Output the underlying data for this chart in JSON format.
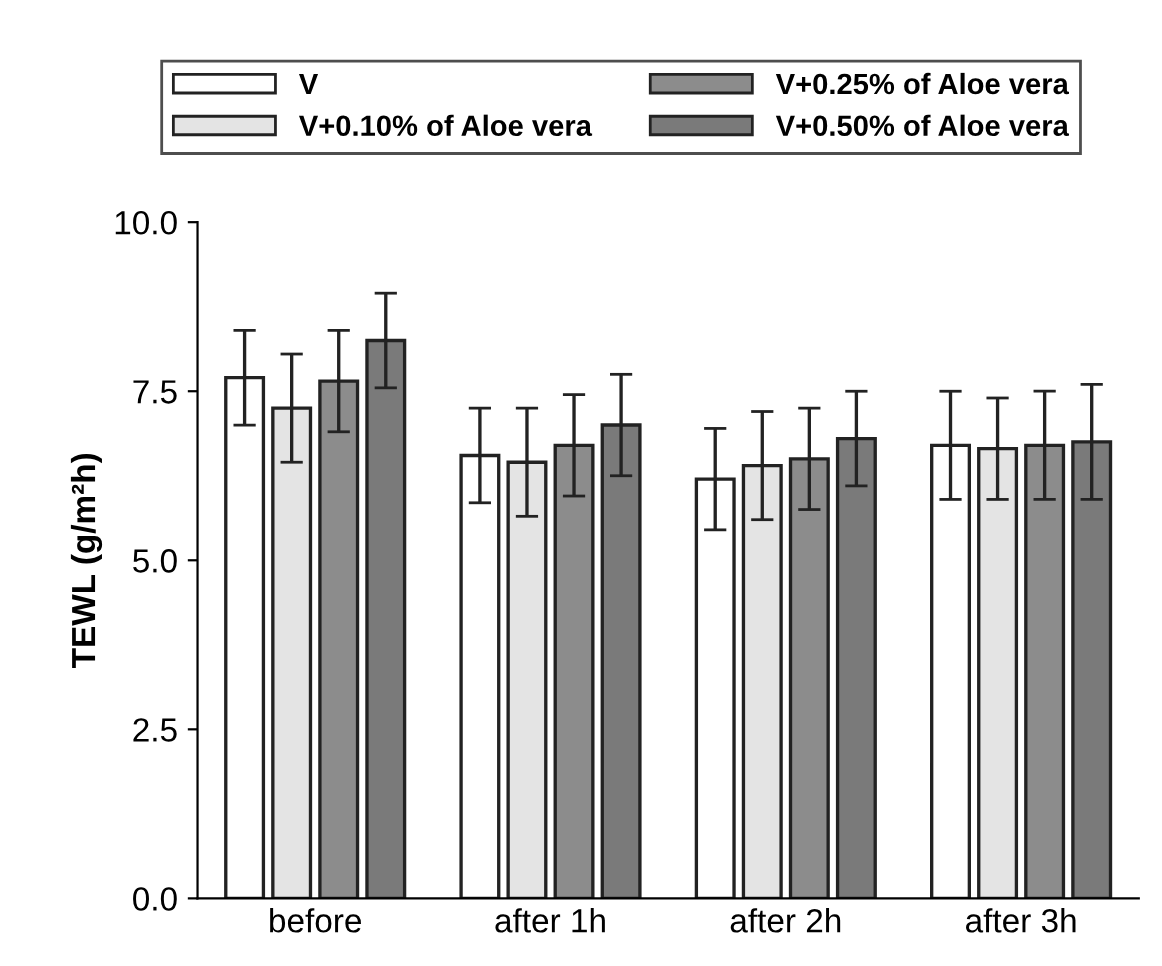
{
  "chart_data": {
    "type": "bar",
    "ylabel": "TEWL (g/m²h)",
    "categories": [
      "before",
      "after 1h",
      "after 2h",
      "after 3h"
    ],
    "series": [
      {
        "name": "V",
        "color": "#ffffff",
        "values": [
          7.7,
          6.55,
          6.2,
          6.7
        ],
        "errors": [
          0.7,
          0.7,
          0.75,
          0.8
        ]
      },
      {
        "name": "V+0.10% of Aloe vera",
        "color": "#e4e4e4",
        "values": [
          7.25,
          6.45,
          6.4,
          6.65
        ],
        "errors": [
          0.8,
          0.8,
          0.8,
          0.75
        ]
      },
      {
        "name": "V+0.25% of Aloe vera",
        "color": "#8c8c8c",
        "values": [
          7.65,
          6.7,
          6.5,
          6.7
        ],
        "errors": [
          0.75,
          0.75,
          0.75,
          0.8
        ]
      },
      {
        "name": "V+0.50% of Aloe vera",
        "color": "#7a7a7a",
        "values": [
          8.25,
          7.0,
          6.8,
          6.75
        ],
        "errors": [
          0.7,
          0.75,
          0.7,
          0.85
        ]
      }
    ],
    "ylim": [
      0,
      10
    ],
    "yticks": [
      {
        "value": 0,
        "label": "0.0"
      },
      {
        "value": 2.5,
        "label": "2.5"
      },
      {
        "value": 5,
        "label": "5.0"
      },
      {
        "value": 7.5,
        "label": "7.5"
      },
      {
        "value": 10,
        "label": "10.0"
      }
    ],
    "legend": "top",
    "grid": false
  }
}
